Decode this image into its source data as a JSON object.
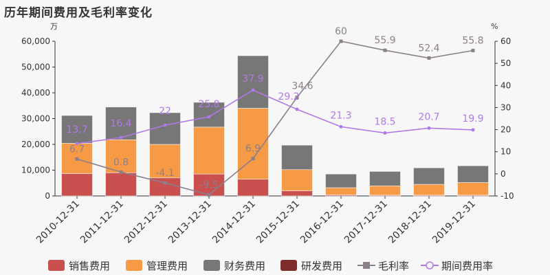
{
  "title": "历年期间费用及毛利率变化",
  "chart_data": {
    "type": "bar",
    "stacked": true,
    "categories": [
      "2010-12-31",
      "2011-12-31",
      "2012-12-31",
      "2013-12-31",
      "2014-12-31",
      "2015-12-31",
      "2016-12-31",
      "2017-12-31",
      "2018-12-31",
      "2019-12-31"
    ],
    "left_axis": {
      "unit": "万",
      "ylim": [
        0,
        60000
      ],
      "ticks": [
        "0",
        "10,000",
        "20,000",
        "30,000",
        "40,000",
        "50,000",
        "60,000"
      ]
    },
    "right_axis": {
      "unit": "%",
      "ylim": [
        -10,
        60
      ],
      "ticks": [
        "-10",
        "0",
        "10",
        "20",
        "30",
        "40",
        "50",
        "60"
      ]
    },
    "series": [
      {
        "name": "销售费用",
        "type": "bar",
        "color": "#c9504f",
        "values": [
          8700,
          9000,
          7000,
          8500,
          6500,
          2000,
          400,
          300,
          300,
          300
        ]
      },
      {
        "name": "管理费用",
        "type": "bar",
        "color": "#f79a46",
        "values": [
          11700,
          12800,
          13000,
          18200,
          27500,
          8200,
          2800,
          3600,
          4200,
          4900
        ]
      },
      {
        "name": "财务费用",
        "type": "bar",
        "color": "#777777",
        "values": [
          10800,
          12700,
          12300,
          9600,
          20400,
          9500,
          5300,
          5600,
          6400,
          6500
        ]
      },
      {
        "name": "研发费用",
        "type": "bar",
        "color": "#7d2b2b",
        "values": [
          0,
          0,
          0,
          0,
          0,
          0,
          0,
          0,
          0,
          0
        ]
      },
      {
        "name": "毛利率",
        "type": "line",
        "axis": "right",
        "color": "#8a7f8a",
        "marker": "square",
        "values": [
          6.7,
          0.8,
          -4.1,
          -9.5,
          6.9,
          34.6,
          60,
          55.9,
          52.4,
          55.8
        ],
        "labels": [
          "6.7",
          "0.8",
          "-4.1",
          "-9.5",
          "6.9",
          "34.6",
          "60",
          "55.9",
          "52.4",
          "55.8"
        ]
      },
      {
        "name": "期间费用率",
        "type": "line",
        "axis": "right",
        "color": "#b07ae6",
        "marker": "circle",
        "values": [
          13.7,
          16.4,
          22,
          25.8,
          37.9,
          29.2,
          21.3,
          18.5,
          20.7,
          19.9
        ],
        "labels": [
          "13.7",
          "16.4",
          "22",
          "25.8",
          "37.9",
          "29.2",
          "21.3",
          "18.5",
          "20.7",
          "19.9"
        ]
      }
    ],
    "legend": "bottom",
    "grid": false
  }
}
